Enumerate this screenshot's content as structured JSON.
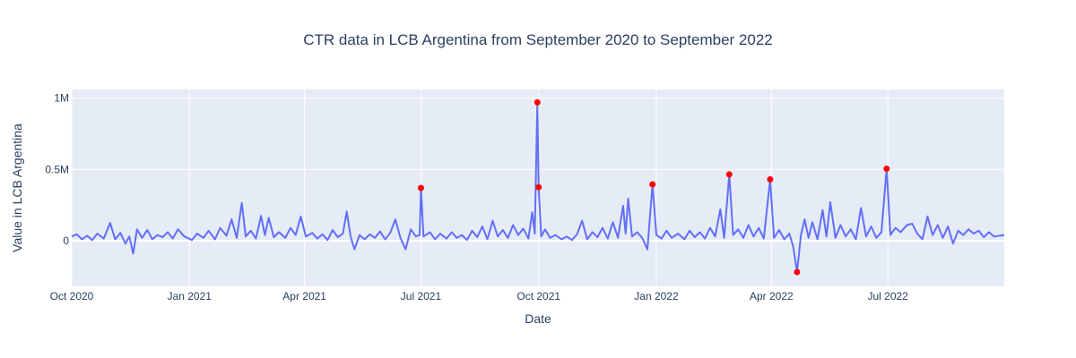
{
  "chart_data": {
    "type": "line",
    "title": "CTR data in LCB Argentina from September 2020 to September 2022",
    "xlabel": "Date",
    "ylabel": "Value in LCB Argentina",
    "xlim": [
      "2020-10-01",
      "2022-09-30"
    ],
    "ylim": [
      -320000,
      1060000
    ],
    "x_ticks": [
      {
        "date": "2020-10-01",
        "label": "Oct 2020"
      },
      {
        "date": "2021-01-01",
        "label": "Jan 2021"
      },
      {
        "date": "2021-04-01",
        "label": "Apr 2021"
      },
      {
        "date": "2021-07-01",
        "label": "Jul 2021"
      },
      {
        "date": "2021-10-01",
        "label": "Oct 2021"
      },
      {
        "date": "2022-01-01",
        "label": "Jan 2022"
      },
      {
        "date": "2022-04-01",
        "label": "Apr 2022"
      },
      {
        "date": "2022-07-01",
        "label": "Jul 2022"
      }
    ],
    "y_ticks": [
      {
        "value": 0,
        "label": "0"
      },
      {
        "value": 500000,
        "label": "0.5M"
      },
      {
        "value": 1000000,
        "label": "1M"
      }
    ],
    "grid": true,
    "colors": {
      "line": "#636efa",
      "anomaly": "#ff0000",
      "plot_bg": "#e5ecf6",
      "grid": "#ffffff"
    },
    "series": [
      {
        "values": [
          [
            "2020-10-01",
            30000
          ],
          [
            "2020-10-05",
            45000
          ],
          [
            "2020-10-09",
            10000
          ],
          [
            "2020-10-13",
            35000
          ],
          [
            "2020-10-17",
            5000
          ],
          [
            "2020-10-21",
            50000
          ],
          [
            "2020-10-26",
            15000
          ],
          [
            "2020-10-31",
            125000
          ],
          [
            "2020-11-04",
            10000
          ],
          [
            "2020-11-08",
            55000
          ],
          [
            "2020-11-12",
            -20000
          ],
          [
            "2020-11-15",
            30000
          ],
          [
            "2020-11-18",
            -90000
          ],
          [
            "2020-11-21",
            80000
          ],
          [
            "2020-11-25",
            20000
          ],
          [
            "2020-11-29",
            75000
          ],
          [
            "2020-12-03",
            10000
          ],
          [
            "2020-12-07",
            40000
          ],
          [
            "2020-12-11",
            25000
          ],
          [
            "2020-12-15",
            60000
          ],
          [
            "2020-12-19",
            15000
          ],
          [
            "2020-12-23",
            80000
          ],
          [
            "2020-12-28",
            30000
          ],
          [
            "2021-01-03",
            5000
          ],
          [
            "2021-01-07",
            50000
          ],
          [
            "2021-01-12",
            20000
          ],
          [
            "2021-01-16",
            70000
          ],
          [
            "2021-01-21",
            10000
          ],
          [
            "2021-01-25",
            90000
          ],
          [
            "2021-01-30",
            35000
          ],
          [
            "2021-02-03",
            150000
          ],
          [
            "2021-02-07",
            20000
          ],
          [
            "2021-02-11",
            265000
          ],
          [
            "2021-02-14",
            30000
          ],
          [
            "2021-02-18",
            70000
          ],
          [
            "2021-02-22",
            15000
          ],
          [
            "2021-02-26",
            175000
          ],
          [
            "2021-03-01",
            40000
          ],
          [
            "2021-03-04",
            160000
          ],
          [
            "2021-03-08",
            25000
          ],
          [
            "2021-03-12",
            60000
          ],
          [
            "2021-03-17",
            20000
          ],
          [
            "2021-03-21",
            90000
          ],
          [
            "2021-03-25",
            40000
          ],
          [
            "2021-03-29",
            170000
          ],
          [
            "2021-04-02",
            30000
          ],
          [
            "2021-04-07",
            55000
          ],
          [
            "2021-04-11",
            15000
          ],
          [
            "2021-04-15",
            45000
          ],
          [
            "2021-04-19",
            5000
          ],
          [
            "2021-04-23",
            75000
          ],
          [
            "2021-04-27",
            25000
          ],
          [
            "2021-05-01",
            50000
          ],
          [
            "2021-05-04",
            205000
          ],
          [
            "2021-05-07",
            30000
          ],
          [
            "2021-05-10",
            -60000
          ],
          [
            "2021-05-14",
            40000
          ],
          [
            "2021-05-18",
            10000
          ],
          [
            "2021-05-22",
            45000
          ],
          [
            "2021-05-26",
            20000
          ],
          [
            "2021-05-30",
            65000
          ],
          [
            "2021-06-03",
            10000
          ],
          [
            "2021-06-07",
            55000
          ],
          [
            "2021-06-11",
            150000
          ],
          [
            "2021-06-15",
            20000
          ],
          [
            "2021-06-19",
            -60000
          ],
          [
            "2021-06-23",
            80000
          ],
          [
            "2021-06-27",
            30000
          ],
          [
            "2021-06-30",
            40000
          ],
          [
            "2021-07-01",
            370000
          ],
          [
            "2021-07-03",
            30000
          ],
          [
            "2021-07-08",
            60000
          ],
          [
            "2021-07-12",
            10000
          ],
          [
            "2021-07-16",
            50000
          ],
          [
            "2021-07-21",
            15000
          ],
          [
            "2021-07-25",
            60000
          ],
          [
            "2021-07-29",
            20000
          ],
          [
            "2021-08-02",
            40000
          ],
          [
            "2021-08-06",
            5000
          ],
          [
            "2021-08-10",
            70000
          ],
          [
            "2021-08-14",
            25000
          ],
          [
            "2021-08-18",
            100000
          ],
          [
            "2021-08-22",
            10000
          ],
          [
            "2021-08-26",
            140000
          ],
          [
            "2021-08-30",
            30000
          ],
          [
            "2021-09-03",
            75000
          ],
          [
            "2021-09-07",
            20000
          ],
          [
            "2021-09-11",
            110000
          ],
          [
            "2021-09-15",
            40000
          ],
          [
            "2021-09-19",
            85000
          ],
          [
            "2021-09-23",
            15000
          ],
          [
            "2021-09-26",
            200000
          ],
          [
            "2021-09-28",
            50000
          ],
          [
            "2021-09-30",
            970000
          ],
          [
            "2021-10-01",
            375000
          ],
          [
            "2021-10-03",
            30000
          ],
          [
            "2021-10-06",
            80000
          ],
          [
            "2021-10-10",
            20000
          ],
          [
            "2021-10-14",
            40000
          ],
          [
            "2021-10-19",
            10000
          ],
          [
            "2021-10-23",
            30000
          ],
          [
            "2021-10-27",
            5000
          ],
          [
            "2021-10-31",
            45000
          ],
          [
            "2021-11-04",
            140000
          ],
          [
            "2021-11-08",
            10000
          ],
          [
            "2021-11-12",
            60000
          ],
          [
            "2021-11-16",
            25000
          ],
          [
            "2021-11-20",
            90000
          ],
          [
            "2021-11-24",
            15000
          ],
          [
            "2021-11-28",
            130000
          ],
          [
            "2021-12-02",
            20000
          ],
          [
            "2021-12-06",
            245000
          ],
          [
            "2021-12-08",
            50000
          ],
          [
            "2021-12-10",
            295000
          ],
          [
            "2021-12-13",
            30000
          ],
          [
            "2021-12-17",
            60000
          ],
          [
            "2021-12-21",
            20000
          ],
          [
            "2021-12-25",
            -60000
          ],
          [
            "2021-12-29",
            395000
          ],
          [
            "2022-01-01",
            40000
          ],
          [
            "2022-01-05",
            15000
          ],
          [
            "2022-01-09",
            70000
          ],
          [
            "2022-01-13",
            20000
          ],
          [
            "2022-01-18",
            50000
          ],
          [
            "2022-01-23",
            10000
          ],
          [
            "2022-01-27",
            70000
          ],
          [
            "2022-01-31",
            25000
          ],
          [
            "2022-02-04",
            60000
          ],
          [
            "2022-02-08",
            15000
          ],
          [
            "2022-02-12",
            90000
          ],
          [
            "2022-02-16",
            30000
          ],
          [
            "2022-02-20",
            220000
          ],
          [
            "2022-02-23",
            20000
          ],
          [
            "2022-02-27",
            465000
          ],
          [
            "2022-03-02",
            40000
          ],
          [
            "2022-03-06",
            80000
          ],
          [
            "2022-03-10",
            20000
          ],
          [
            "2022-03-14",
            110000
          ],
          [
            "2022-03-18",
            30000
          ],
          [
            "2022-03-22",
            90000
          ],
          [
            "2022-03-26",
            15000
          ],
          [
            "2022-03-31",
            430000
          ],
          [
            "2022-04-03",
            20000
          ],
          [
            "2022-04-07",
            75000
          ],
          [
            "2022-04-11",
            10000
          ],
          [
            "2022-04-15",
            50000
          ],
          [
            "2022-04-18",
            -40000
          ],
          [
            "2022-04-21",
            -220000
          ],
          [
            "2022-04-24",
            40000
          ],
          [
            "2022-04-27",
            150000
          ],
          [
            "2022-04-30",
            20000
          ],
          [
            "2022-05-03",
            130000
          ],
          [
            "2022-05-07",
            10000
          ],
          [
            "2022-05-11",
            215000
          ],
          [
            "2022-05-14",
            30000
          ],
          [
            "2022-05-17",
            270000
          ],
          [
            "2022-05-21",
            20000
          ],
          [
            "2022-05-25",
            110000
          ],
          [
            "2022-05-29",
            30000
          ],
          [
            "2022-06-02",
            80000
          ],
          [
            "2022-06-06",
            10000
          ],
          [
            "2022-06-10",
            230000
          ],
          [
            "2022-06-14",
            30000
          ],
          [
            "2022-06-18",
            100000
          ],
          [
            "2022-06-22",
            20000
          ],
          [
            "2022-06-26",
            60000
          ],
          [
            "2022-06-30",
            505000
          ],
          [
            "2022-07-03",
            40000
          ],
          [
            "2022-07-07",
            90000
          ],
          [
            "2022-07-11",
            60000
          ],
          [
            "2022-07-16",
            110000
          ],
          [
            "2022-07-20",
            120000
          ],
          [
            "2022-07-24",
            50000
          ],
          [
            "2022-07-28",
            10000
          ],
          [
            "2022-08-01",
            170000
          ],
          [
            "2022-08-05",
            40000
          ],
          [
            "2022-08-09",
            110000
          ],
          [
            "2022-08-13",
            20000
          ],
          [
            "2022-08-17",
            100000
          ],
          [
            "2022-08-21",
            -20000
          ],
          [
            "2022-08-25",
            70000
          ],
          [
            "2022-08-29",
            40000
          ],
          [
            "2022-09-02",
            80000
          ],
          [
            "2022-09-06",
            50000
          ],
          [
            "2022-09-10",
            70000
          ],
          [
            "2022-09-14",
            25000
          ],
          [
            "2022-09-18",
            60000
          ],
          [
            "2022-09-22",
            30000
          ],
          [
            "2022-09-26",
            35000
          ],
          [
            "2022-09-30",
            40000
          ]
        ]
      },
      {
        "values": [
          [
            "2021-07-01",
            370000
          ],
          [
            "2021-09-30",
            970000
          ],
          [
            "2021-10-01",
            375000
          ],
          [
            "2021-12-29",
            395000
          ],
          [
            "2022-02-27",
            465000
          ],
          [
            "2022-03-31",
            430000
          ],
          [
            "2022-04-21",
            -220000
          ],
          [
            "2022-06-30",
            505000
          ]
        ]
      }
    ]
  }
}
